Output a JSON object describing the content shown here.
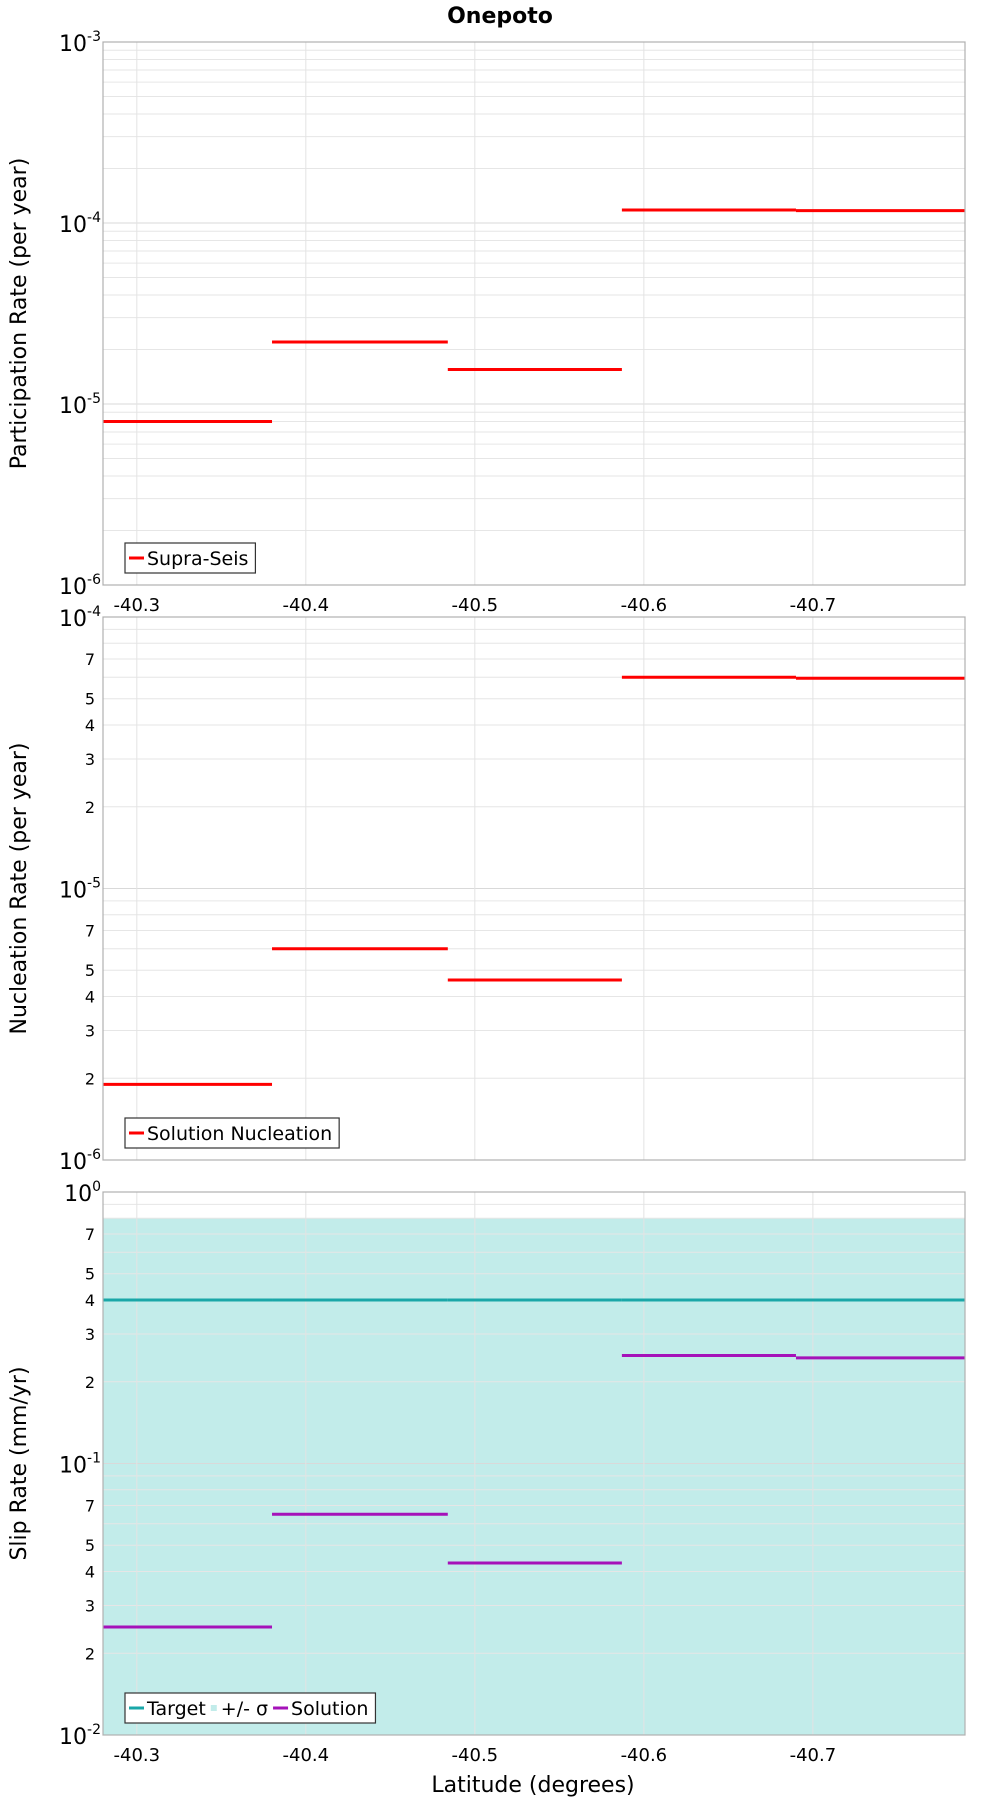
{
  "figure": {
    "title": "Onepoto",
    "xlabel": "Latitude (degrees)"
  },
  "chart_data": [
    {
      "type": "line",
      "step": true,
      "ylabel": "Participation Rate (per year)",
      "yscale": "log",
      "ylim": [
        1e-06,
        0.001
      ],
      "xlim": [
        -40.28,
        -40.79
      ],
      "xticks": [
        -40.3,
        -40.4,
        -40.5,
        -40.6,
        -40.7
      ],
      "xticklabels": [
        "-40.3",
        "-40.4",
        "-40.5",
        "-40.6",
        "-40.7"
      ],
      "yticks": [
        {
          "value": 1e-06,
          "base": "10",
          "exp": "-6",
          "major": true
        },
        {
          "value": 1e-05,
          "base": "10",
          "exp": "-5",
          "major": true
        },
        {
          "value": 0.0001,
          "base": "10",
          "exp": "-4",
          "major": true
        },
        {
          "value": 0.001,
          "base": "10",
          "exp": "-3",
          "major": true
        }
      ],
      "grid": true,
      "legend_position": "bottom-left",
      "series": [
        {
          "name": "Supra-Seis",
          "color": "#ff0000",
          "kind": "line",
          "segments": [
            {
              "x0": -40.28,
              "x1": -40.38,
              "y": 8e-06
            },
            {
              "x0": -40.38,
              "x1": -40.484,
              "y": 2.2e-05
            },
            {
              "x0": -40.484,
              "x1": -40.587,
              "y": 1.55e-05
            },
            {
              "x0": -40.587,
              "x1": -40.69,
              "y": 0.000118
            },
            {
              "x0": -40.69,
              "x1": -40.79,
              "y": 0.000117
            }
          ]
        }
      ]
    },
    {
      "type": "line",
      "step": true,
      "ylabel": "Nucleation Rate (per year)",
      "yscale": "log",
      "ylim": [
        1e-06,
        0.0001
      ],
      "xlim": [
        -40.28,
        -40.79
      ],
      "xticks": [
        -40.3,
        -40.4,
        -40.5,
        -40.6,
        -40.7
      ],
      "xticklabels": [],
      "yticks": [
        {
          "value": 1e-06,
          "base": "10",
          "exp": "-6",
          "major": true
        },
        {
          "value": 2e-06,
          "label": "2",
          "major": false
        },
        {
          "value": 3e-06,
          "label": "3",
          "major": false
        },
        {
          "value": 4e-06,
          "label": "4",
          "major": false
        },
        {
          "value": 5e-06,
          "label": "5",
          "major": false
        },
        {
          "value": 7e-06,
          "label": "7",
          "major": false
        },
        {
          "value": 1e-05,
          "base": "10",
          "exp": "-5",
          "major": true
        },
        {
          "value": 2e-05,
          "label": "2",
          "major": false
        },
        {
          "value": 3e-05,
          "label": "3",
          "major": false
        },
        {
          "value": 4e-05,
          "label": "4",
          "major": false
        },
        {
          "value": 5e-05,
          "label": "5",
          "major": false
        },
        {
          "value": 7e-05,
          "label": "7",
          "major": false
        },
        {
          "value": 0.0001,
          "base": "10",
          "exp": "-4",
          "major": true
        }
      ],
      "grid": true,
      "legend_position": "bottom-left",
      "series": [
        {
          "name": "Solution Nucleation",
          "color": "#ff0000",
          "kind": "line",
          "segments": [
            {
              "x0": -40.28,
              "x1": -40.38,
              "y": 1.9e-06
            },
            {
              "x0": -40.38,
              "x1": -40.484,
              "y": 6e-06
            },
            {
              "x0": -40.484,
              "x1": -40.587,
              "y": 4.6e-06
            },
            {
              "x0": -40.587,
              "x1": -40.69,
              "y": 6e-05
            },
            {
              "x0": -40.69,
              "x1": -40.79,
              "y": 5.95e-05
            }
          ]
        }
      ]
    },
    {
      "type": "line",
      "step": true,
      "ylabel": "Slip Rate (mm/yr)",
      "yscale": "log",
      "ylim": [
        0.01,
        1
      ],
      "xlim": [
        -40.28,
        -40.79
      ],
      "xticks": [
        -40.3,
        -40.4,
        -40.5,
        -40.6,
        -40.7
      ],
      "xticklabels": [
        "-40.3",
        "-40.4",
        "-40.5",
        "-40.6",
        "-40.7"
      ],
      "yticks": [
        {
          "value": 0.01,
          "base": "10",
          "exp": "-2",
          "major": true
        },
        {
          "value": 0.02,
          "label": "2",
          "major": false
        },
        {
          "value": 0.03,
          "label": "3",
          "major": false
        },
        {
          "value": 0.04,
          "label": "4",
          "major": false
        },
        {
          "value": 0.05,
          "label": "5",
          "major": false
        },
        {
          "value": 0.07,
          "label": "7",
          "major": false
        },
        {
          "value": 0.1,
          "base": "10",
          "exp": "-1",
          "major": true
        },
        {
          "value": 0.2,
          "label": "2",
          "major": false
        },
        {
          "value": 0.3,
          "label": "3",
          "major": false
        },
        {
          "value": 0.4,
          "label": "4",
          "major": false
        },
        {
          "value": 0.5,
          "label": "5",
          "major": false
        },
        {
          "value": 0.7,
          "label": "7",
          "major": false
        },
        {
          "value": 1,
          "base": "10",
          "exp": "0",
          "major": true
        }
      ],
      "grid": true,
      "legend_position": "bottom-left",
      "series": [
        {
          "name": "+/- σ",
          "color": "#c2ecea",
          "kind": "band",
          "y_low": 0.01,
          "y_high": 0.8,
          "x0": -40.28,
          "x1": -40.79
        },
        {
          "name": "Target",
          "color": "#1aa7a8",
          "kind": "line",
          "segments": [
            {
              "x0": -40.28,
              "x1": -40.38,
              "y": 0.4
            },
            {
              "x0": -40.38,
              "x1": -40.484,
              "y": 0.4
            },
            {
              "x0": -40.484,
              "x1": -40.587,
              "y": 0.4
            },
            {
              "x0": -40.587,
              "x1": -40.69,
              "y": 0.4
            },
            {
              "x0": -40.69,
              "x1": -40.79,
              "y": 0.4
            }
          ]
        },
        {
          "name": "Solution",
          "color": "#a512b9",
          "kind": "line",
          "segments": [
            {
              "x0": -40.28,
              "x1": -40.38,
              "y": 0.025
            },
            {
              "x0": -40.38,
              "x1": -40.484,
              "y": 0.065
            },
            {
              "x0": -40.484,
              "x1": -40.587,
              "y": 0.043
            },
            {
              "x0": -40.587,
              "x1": -40.69,
              "y": 0.25
            },
            {
              "x0": -40.69,
              "x1": -40.79,
              "y": 0.245
            }
          ]
        }
      ],
      "legend_order": [
        "Target",
        "+/- σ",
        "Solution"
      ]
    }
  ]
}
